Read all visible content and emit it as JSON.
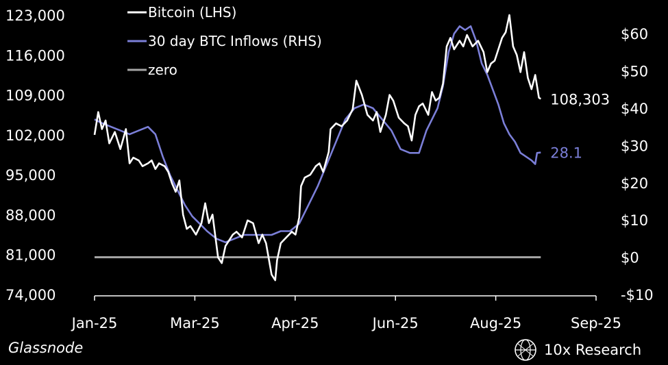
{
  "source_label": "Glassnode",
  "brand": {
    "name": "10x Research",
    "icon": "globe-icon"
  },
  "chart_data": {
    "type": "line",
    "title": "",
    "x_axis": {
      "labels": [
        "Jan-25",
        "Mar-25",
        "Apr-25",
        "Jun-25",
        "Aug-25",
        "Sep-25"
      ],
      "range": [
        "2025-01-01",
        "2025-09-30"
      ]
    },
    "y_left": {
      "ticks": [
        123000,
        116000,
        109000,
        102000,
        95000,
        88000,
        81000,
        74000
      ],
      "tick_labels": [
        "123,000",
        "116,000",
        "109,000",
        "102,000",
        "95,000",
        "88,000",
        "81,000",
        "74,000"
      ],
      "range": [
        74000,
        123000
      ]
    },
    "y_right": {
      "ticks": [
        60,
        50,
        40,
        30,
        20,
        10,
        0,
        -10
      ],
      "tick_labels": [
        "$60",
        "$50",
        "$40",
        "$30",
        "$20",
        "$10",
        "$0",
        "-$10"
      ],
      "range": [
        -10,
        65
      ]
    },
    "legend": {
      "placement": "top-left",
      "entries": [
        "Bitcoin (LHS)",
        "30 day BTC Inflows (RHS)",
        "zero"
      ]
    },
    "series": [
      {
        "name": "Bitcoin (LHS)",
        "axis": "left",
        "color": "#ffffff",
        "end_label": "108,303",
        "points": [
          [
            "2025-01-01",
            102000
          ],
          [
            "2025-01-03",
            106000
          ],
          [
            "2025-01-05",
            103000
          ],
          [
            "2025-01-07",
            104500
          ],
          [
            "2025-01-09",
            100500
          ],
          [
            "2025-01-12",
            102500
          ],
          [
            "2025-01-15",
            99500
          ],
          [
            "2025-01-18",
            103000
          ],
          [
            "2025-01-20",
            97000
          ],
          [
            "2025-01-22",
            98000
          ],
          [
            "2025-01-25",
            97500
          ],
          [
            "2025-01-27",
            96500
          ],
          [
            "2025-01-30",
            97000
          ],
          [
            "2025-02-01",
            97500
          ],
          [
            "2025-02-03",
            96000
          ],
          [
            "2025-02-05",
            97000
          ],
          [
            "2025-02-08",
            96500
          ],
          [
            "2025-02-10",
            95500
          ],
          [
            "2025-02-12",
            93500
          ],
          [
            "2025-02-14",
            92000
          ],
          [
            "2025-02-16",
            94000
          ],
          [
            "2025-02-18",
            88000
          ],
          [
            "2025-02-20",
            85500
          ],
          [
            "2025-02-22",
            86000
          ],
          [
            "2025-02-25",
            84500
          ],
          [
            "2025-02-28",
            86500
          ],
          [
            "2025-03-02",
            90000
          ],
          [
            "2025-03-04",
            86500
          ],
          [
            "2025-03-06",
            88000
          ],
          [
            "2025-03-09",
            80500
          ],
          [
            "2025-03-11",
            79500
          ],
          [
            "2025-03-13",
            82500
          ],
          [
            "2025-03-15",
            83500
          ],
          [
            "2025-03-17",
            84500
          ],
          [
            "2025-03-19",
            85000
          ],
          [
            "2025-03-22",
            84000
          ],
          [
            "2025-03-25",
            87000
          ],
          [
            "2025-03-28",
            86500
          ],
          [
            "2025-03-31",
            83000
          ],
          [
            "2025-04-02",
            84500
          ],
          [
            "2025-04-04",
            83000
          ],
          [
            "2025-04-07",
            77500
          ],
          [
            "2025-04-09",
            76500
          ],
          [
            "2025-04-10",
            80000
          ],
          [
            "2025-04-12",
            83000
          ],
          [
            "2025-04-15",
            84000
          ],
          [
            "2025-04-18",
            85000
          ],
          [
            "2025-04-20",
            84500
          ],
          [
            "2025-04-22",
            87500
          ],
          [
            "2025-04-23",
            93000
          ],
          [
            "2025-04-25",
            94500
          ],
          [
            "2025-04-28",
            95000
          ],
          [
            "2025-05-01",
            96500
          ],
          [
            "2025-05-03",
            97000
          ],
          [
            "2025-05-05",
            95500
          ],
          [
            "2025-05-08",
            99000
          ],
          [
            "2025-05-09",
            103000
          ],
          [
            "2025-05-12",
            104000
          ],
          [
            "2025-05-15",
            103500
          ],
          [
            "2025-05-18",
            104500
          ],
          [
            "2025-05-21",
            106500
          ],
          [
            "2025-05-23",
            111500
          ],
          [
            "2025-05-26",
            109000
          ],
          [
            "2025-05-29",
            105500
          ],
          [
            "2025-06-01",
            104500
          ],
          [
            "2025-06-03",
            106000
          ],
          [
            "2025-06-05",
            102500
          ],
          [
            "2025-06-08",
            105500
          ],
          [
            "2025-06-10",
            109000
          ],
          [
            "2025-06-12",
            108000
          ],
          [
            "2025-06-15",
            105000
          ],
          [
            "2025-06-18",
            104000
          ],
          [
            "2025-06-20",
            103500
          ],
          [
            "2025-06-22",
            101000
          ],
          [
            "2025-06-24",
            105500
          ],
          [
            "2025-06-26",
            107000
          ],
          [
            "2025-06-28",
            107500
          ],
          [
            "2025-07-01",
            105500
          ],
          [
            "2025-07-03",
            109500
          ],
          [
            "2025-07-05",
            108000
          ],
          [
            "2025-07-07",
            108500
          ],
          [
            "2025-07-09",
            111000
          ],
          [
            "2025-07-11",
            117500
          ],
          [
            "2025-07-13",
            119000
          ],
          [
            "2025-07-15",
            117000
          ],
          [
            "2025-07-18",
            118500
          ],
          [
            "2025-07-20",
            117500
          ],
          [
            "2025-07-22",
            119500
          ],
          [
            "2025-07-25",
            117500
          ],
          [
            "2025-07-28",
            118500
          ],
          [
            "2025-07-31",
            116500
          ],
          [
            "2025-08-02",
            113000
          ],
          [
            "2025-08-04",
            114500
          ],
          [
            "2025-08-06",
            115000
          ],
          [
            "2025-08-08",
            117000
          ],
          [
            "2025-08-10",
            119000
          ],
          [
            "2025-08-12",
            120000
          ],
          [
            "2025-08-14",
            123000
          ],
          [
            "2025-08-16",
            117500
          ],
          [
            "2025-08-18",
            116000
          ],
          [
            "2025-08-20",
            113000
          ],
          [
            "2025-08-22",
            116500
          ],
          [
            "2025-08-24",
            112000
          ],
          [
            "2025-08-26",
            110000
          ],
          [
            "2025-08-28",
            112500
          ],
          [
            "2025-08-30",
            108500
          ],
          [
            "2025-08-31",
            108303
          ]
        ]
      },
      {
        "name": "30 day BTC Inflows (RHS)",
        "axis": "right",
        "color": "#7b7fd8",
        "end_label": "28.1",
        "points": [
          [
            "2025-01-01",
            37
          ],
          [
            "2025-01-05",
            36
          ],
          [
            "2025-01-10",
            35
          ],
          [
            "2025-01-15",
            34
          ],
          [
            "2025-01-20",
            33
          ],
          [
            "2025-01-25",
            34
          ],
          [
            "2025-01-30",
            35
          ],
          [
            "2025-02-03",
            33
          ],
          [
            "2025-02-07",
            27
          ],
          [
            "2025-02-11",
            22
          ],
          [
            "2025-02-15",
            18
          ],
          [
            "2025-02-19",
            14
          ],
          [
            "2025-02-23",
            11
          ],
          [
            "2025-02-27",
            9
          ],
          [
            "2025-03-03",
            7
          ],
          [
            "2025-03-08",
            5
          ],
          [
            "2025-03-13",
            4
          ],
          [
            "2025-03-18",
            5
          ],
          [
            "2025-03-23",
            6
          ],
          [
            "2025-03-28",
            6
          ],
          [
            "2025-04-02",
            6
          ],
          [
            "2025-04-07",
            6
          ],
          [
            "2025-04-12",
            7
          ],
          [
            "2025-04-17",
            7
          ],
          [
            "2025-04-22",
            9
          ],
          [
            "2025-04-27",
            14
          ],
          [
            "2025-05-02",
            19
          ],
          [
            "2025-05-07",
            25
          ],
          [
            "2025-05-12",
            31
          ],
          [
            "2025-05-17",
            37
          ],
          [
            "2025-05-22",
            40
          ],
          [
            "2025-05-27",
            41
          ],
          [
            "2025-06-01",
            40
          ],
          [
            "2025-06-06",
            37
          ],
          [
            "2025-06-11",
            34
          ],
          [
            "2025-06-16",
            29
          ],
          [
            "2025-06-21",
            28
          ],
          [
            "2025-06-26",
            28
          ],
          [
            "2025-06-30",
            34
          ],
          [
            "2025-07-03",
            37
          ],
          [
            "2025-07-06",
            40
          ],
          [
            "2025-07-09",
            46
          ],
          [
            "2025-07-12",
            55
          ],
          [
            "2025-07-15",
            60
          ],
          [
            "2025-07-18",
            62
          ],
          [
            "2025-07-21",
            61
          ],
          [
            "2025-07-24",
            62
          ],
          [
            "2025-07-27",
            58
          ],
          [
            "2025-07-30",
            52
          ],
          [
            "2025-08-02",
            49
          ],
          [
            "2025-08-05",
            45
          ],
          [
            "2025-08-08",
            41
          ],
          [
            "2025-08-11",
            36
          ],
          [
            "2025-08-14",
            33
          ],
          [
            "2025-08-17",
            31
          ],
          [
            "2025-08-20",
            28
          ],
          [
            "2025-08-23",
            27
          ],
          [
            "2025-08-26",
            26
          ],
          [
            "2025-08-28",
            25
          ],
          [
            "2025-08-29",
            28
          ],
          [
            "2025-08-31",
            28.1
          ]
        ]
      },
      {
        "name": "zero",
        "axis": "right",
        "color": "#a6a6a6",
        "points": [
          [
            "2025-01-01",
            0
          ],
          [
            "2025-08-31",
            0
          ]
        ]
      }
    ]
  }
}
